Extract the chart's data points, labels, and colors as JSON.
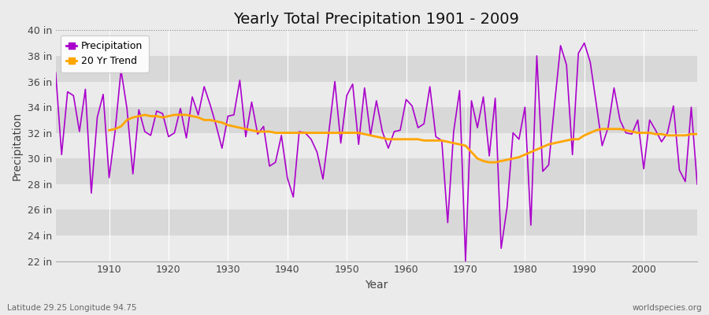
{
  "title": "Yearly Total Precipitation 1901 - 2009",
  "xlabel": "Year",
  "ylabel": "Precipitation",
  "lat_lon_label": "Latitude 29.25 Longitude 94.75",
  "source_label": "worldspecies.org",
  "ylim": [
    22,
    40
  ],
  "yticks": [
    22,
    24,
    26,
    28,
    30,
    32,
    34,
    36,
    38,
    40
  ],
  "ytick_labels": [
    "22 in",
    "24 in",
    "26 in",
    "28 in",
    "30 in",
    "32 in",
    "34 in",
    "36 in",
    "38 in",
    "40 in"
  ],
  "years": [
    1901,
    1902,
    1903,
    1904,
    1905,
    1906,
    1907,
    1908,
    1909,
    1910,
    1911,
    1912,
    1913,
    1914,
    1915,
    1916,
    1917,
    1918,
    1919,
    1920,
    1921,
    1922,
    1923,
    1924,
    1925,
    1926,
    1927,
    1928,
    1929,
    1930,
    1931,
    1932,
    1933,
    1934,
    1935,
    1936,
    1937,
    1938,
    1939,
    1940,
    1941,
    1942,
    1943,
    1944,
    1945,
    1946,
    1947,
    1948,
    1949,
    1950,
    1951,
    1952,
    1953,
    1954,
    1955,
    1956,
    1957,
    1958,
    1959,
    1960,
    1961,
    1962,
    1963,
    1964,
    1965,
    1966,
    1967,
    1968,
    1969,
    1970,
    1971,
    1972,
    1973,
    1974,
    1975,
    1976,
    1977,
    1978,
    1979,
    1980,
    1981,
    1982,
    1983,
    1984,
    1985,
    1986,
    1987,
    1988,
    1989,
    1990,
    1991,
    1992,
    1993,
    1994,
    1995,
    1996,
    1997,
    1998,
    1999,
    2000,
    2001,
    2002,
    2003,
    2004,
    2005,
    2006,
    2007,
    2008,
    2009
  ],
  "precip": [
    36.7,
    30.3,
    35.2,
    34.9,
    32.1,
    35.4,
    27.3,
    33.2,
    35.0,
    28.5,
    32.1,
    36.9,
    33.9,
    28.8,
    33.8,
    32.1,
    31.8,
    33.7,
    33.5,
    31.7,
    32.0,
    33.9,
    31.6,
    34.8,
    33.4,
    35.6,
    34.2,
    32.6,
    30.8,
    33.3,
    33.4,
    36.1,
    31.7,
    34.4,
    31.9,
    32.5,
    29.4,
    29.7,
    31.8,
    28.5,
    27.0,
    32.1,
    32.0,
    31.5,
    30.5,
    28.4,
    32.1,
    36.0,
    31.2,
    34.9,
    35.8,
    31.1,
    35.5,
    31.8,
    34.5,
    32.1,
    30.8,
    32.1,
    32.2,
    34.6,
    34.1,
    32.4,
    32.7,
    35.6,
    31.7,
    31.4,
    25.0,
    32.1,
    35.3,
    22.0,
    34.5,
    32.4,
    34.8,
    30.2,
    34.7,
    23.0,
    26.2,
    32.0,
    31.5,
    34.0,
    24.8,
    38.0,
    29.0,
    29.5,
    34.3,
    38.8,
    37.3,
    30.3,
    38.2,
    39.0,
    37.5,
    34.3,
    31.0,
    32.4,
    35.5,
    33.0,
    32.0,
    31.9,
    33.0,
    29.2,
    33.0,
    32.2,
    31.3,
    32.0,
    34.1,
    29.1,
    28.2,
    34.0,
    28.0
  ],
  "trend_years": [
    1910,
    1911,
    1912,
    1913,
    1914,
    1915,
    1916,
    1917,
    1918,
    1919,
    1920,
    1921,
    1922,
    1923,
    1924,
    1925,
    1926,
    1927,
    1928,
    1929,
    1930,
    1931,
    1932,
    1933,
    1934,
    1935,
    1936,
    1937,
    1938,
    1939,
    1940,
    1941,
    1942,
    1943,
    1944,
    1945,
    1946,
    1947,
    1948,
    1949,
    1950,
    1951,
    1952,
    1953,
    1954,
    1955,
    1956,
    1957,
    1958,
    1959,
    1960,
    1961,
    1962,
    1963,
    1964,
    1965,
    1966,
    1967,
    1968,
    1969,
    1970,
    1971,
    1972,
    1973,
    1974,
    1975,
    1976,
    1977,
    1978,
    1979,
    1980,
    1981,
    1982,
    1983,
    1984,
    1985,
    1986,
    1987,
    1988,
    1989,
    1990,
    1991,
    1992,
    1993,
    1994,
    1995,
    1996,
    1997,
    1998,
    1999,
    2000,
    2001,
    2002,
    2003,
    2004,
    2005,
    2006,
    2007,
    2008,
    2009
  ],
  "trend": [
    32.2,
    32.3,
    32.5,
    33.0,
    33.2,
    33.3,
    33.4,
    33.3,
    33.3,
    33.2,
    33.3,
    33.4,
    33.4,
    33.4,
    33.3,
    33.2,
    33.0,
    33.0,
    32.9,
    32.8,
    32.6,
    32.5,
    32.4,
    32.3,
    32.2,
    32.1,
    32.1,
    32.1,
    32.0,
    32.0,
    32.0,
    32.0,
    32.0,
    32.0,
    32.0,
    32.0,
    32.0,
    32.0,
    32.0,
    32.0,
    32.0,
    32.0,
    32.0,
    31.9,
    31.8,
    31.7,
    31.6,
    31.5,
    31.5,
    31.5,
    31.5,
    31.5,
    31.5,
    31.4,
    31.4,
    31.4,
    31.4,
    31.3,
    31.2,
    31.1,
    31.0,
    30.5,
    30.0,
    29.8,
    29.7,
    29.7,
    29.8,
    29.9,
    30.0,
    30.1,
    30.3,
    30.5,
    30.7,
    30.9,
    31.1,
    31.2,
    31.3,
    31.4,
    31.5,
    31.5,
    31.8,
    32.0,
    32.2,
    32.3,
    32.3,
    32.3,
    32.3,
    32.2,
    32.1,
    32.0,
    32.0,
    32.0,
    31.9,
    31.9,
    31.8,
    31.8,
    31.8,
    31.8,
    31.9,
    31.9
  ],
  "precip_color": "#AA00CC",
  "trend_color": "#FFA500",
  "bg_light": "#EBEBEB",
  "bg_dark": "#D8D8D8",
  "grid_color": "#FFFFFF",
  "title_fontsize": 14,
  "legend_fontsize": 9,
  "tick_fontsize": 9,
  "dotted_line_y": 40,
  "stripe_interval": 2,
  "xlim": [
    1901,
    2009
  ]
}
